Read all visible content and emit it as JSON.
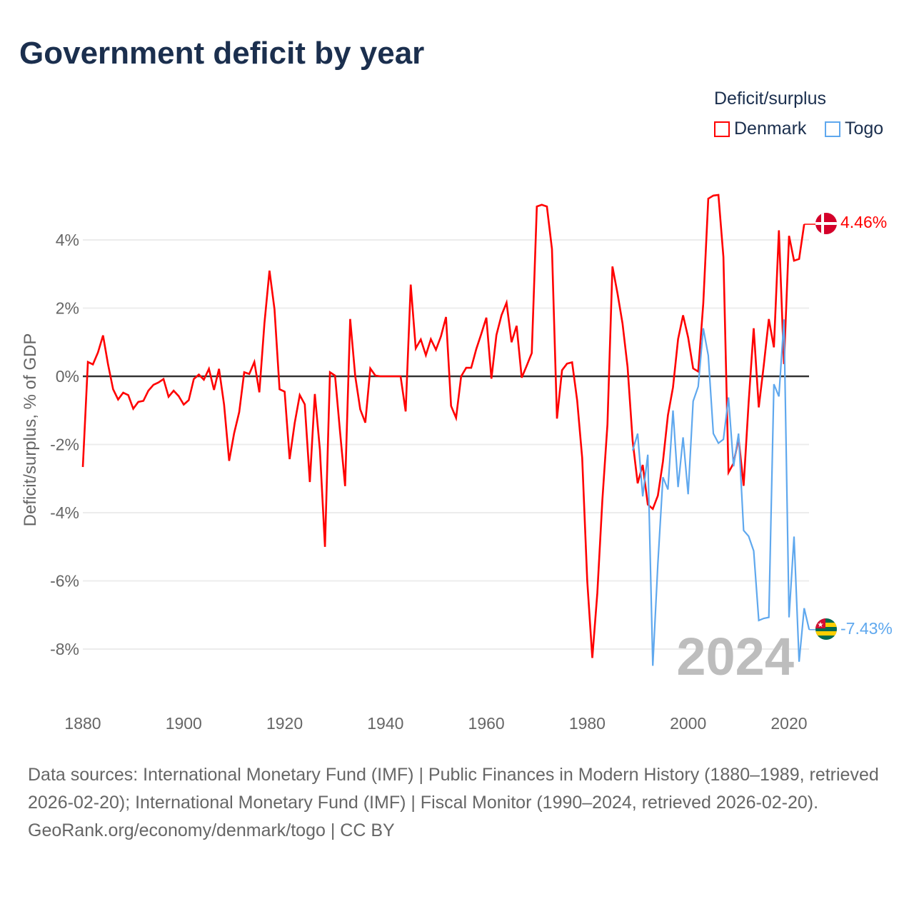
{
  "title": "Government deficit by year",
  "legend": {
    "title": "Deficit/surplus",
    "position": "top-right"
  },
  "footer": {
    "sources": "Data sources: International Monetary Fund (IMF) | Public Finances in Modern History (1880–1989, retrieved 2026-02-20); International Monetary Fund (IMF) | Fiscal Monitor (1990–2024, retrieved 2026-02-20).",
    "credit": "GeoRank.org/economy/denmark/togo | CC BY"
  },
  "chart_data": {
    "type": "line",
    "title": "Government deficit by year",
    "xlabel": "",
    "ylabel": "Deficit/surplus, % of GDP",
    "xlim": [
      1880,
      2024
    ],
    "ylim": [
      -9.5,
      5.5
    ],
    "grid": true,
    "year_watermark": "2024",
    "x_ticks": [
      {
        "value": 1880,
        "label": "1880"
      },
      {
        "value": 1900,
        "label": "1900"
      },
      {
        "value": 1920,
        "label": "1920"
      },
      {
        "value": 1940,
        "label": "1940"
      },
      {
        "value": 1960,
        "label": "1960"
      },
      {
        "value": 1980,
        "label": "1980"
      },
      {
        "value": 2000,
        "label": "2000"
      },
      {
        "value": 2020,
        "label": "2020"
      }
    ],
    "y_ticks": [
      {
        "value": 4,
        "label": "4%"
      },
      {
        "value": 2,
        "label": "2%"
      },
      {
        "value": 0,
        "label": "0%"
      },
      {
        "value": -2,
        "label": "-2%"
      },
      {
        "value": -4,
        "label": "-4%"
      },
      {
        "value": -6,
        "label": "-6%"
      },
      {
        "value": -8,
        "label": "-8%"
      }
    ],
    "series": [
      {
        "name": "Denmark",
        "color": "#ff0000",
        "flag": "denmark-flag",
        "end_label": "4.46%",
        "start_year": 1880,
        "values": [
          -2.66,
          0.42,
          0.35,
          0.7,
          1.2,
          0.35,
          -0.38,
          -0.68,
          -0.48,
          -0.55,
          -0.95,
          -0.75,
          -0.72,
          -0.42,
          -0.25,
          -0.18,
          -0.08,
          -0.6,
          -0.42,
          -0.58,
          -0.83,
          -0.7,
          -0.08,
          0.05,
          -0.1,
          0.22,
          -0.4,
          0.22,
          -0.83,
          -2.48,
          -1.67,
          -1.05,
          0.12,
          0.07,
          0.42,
          -0.47,
          1.55,
          3.1,
          1.97,
          -0.38,
          -0.45,
          -2.43,
          -1.37,
          -0.55,
          -0.82,
          -3.1,
          -0.52,
          -2.15,
          -5.0,
          0.12,
          0.02,
          -1.65,
          -3.22,
          1.68,
          0,
          -0.97,
          -1.36,
          0.23,
          0.02,
          0,
          0,
          0,
          0,
          0,
          -1.03,
          2.69,
          0.82,
          1.08,
          0.62,
          1.09,
          0.78,
          1.17,
          1.74,
          -0.87,
          -1.22,
          0,
          0.25,
          0.25,
          0.8,
          1.25,
          1.72,
          -0.07,
          1.21,
          1.79,
          2.16,
          1.0,
          1.48,
          -0.04,
          0.31,
          0.68,
          4.98,
          5.03,
          4.98,
          3.73,
          -1.24,
          0.18,
          0.37,
          0.41,
          -0.71,
          -2.39,
          -6.0,
          -8.26,
          -6.36,
          -3.62,
          -1.41,
          3.22,
          2.43,
          1.55,
          0.27,
          -1.9,
          -3.14,
          -2.6,
          -3.76,
          -3.89,
          -3.5,
          -2.5,
          -1.14,
          -0.32,
          1.09,
          1.79,
          1.14,
          0.23,
          0.14,
          2.14,
          5.21,
          5.3,
          5.32,
          3.5,
          -2.82,
          -2.55,
          -1.82,
          -3.21,
          -0.77,
          1.41,
          -0.91,
          0.32,
          1.68,
          0.85,
          4.28,
          0.36,
          4.12,
          3.39,
          3.44,
          4.46
        ]
      },
      {
        "name": "Togo",
        "color": "#5fa8ee",
        "flag": "togo-flag",
        "end_label": "-7.43%",
        "start_year": 1989,
        "values": [
          -2.18,
          -1.68,
          -3.52,
          -2.3,
          -8.49,
          -5.5,
          -2.96,
          -3.32,
          -1.0,
          -3.25,
          -1.79,
          -3.46,
          -0.73,
          -0.3,
          1.41,
          0.61,
          -1.68,
          -1.96,
          -1.85,
          -0.62,
          -2.64,
          -1.68,
          -4.52,
          -4.69,
          -5.12,
          -7.16,
          -7.1,
          -7.07,
          -0.23,
          -0.59,
          1.67,
          -7.07,
          -4.7,
          -8.37,
          -6.8,
          -7.43
        ]
      }
    ]
  }
}
